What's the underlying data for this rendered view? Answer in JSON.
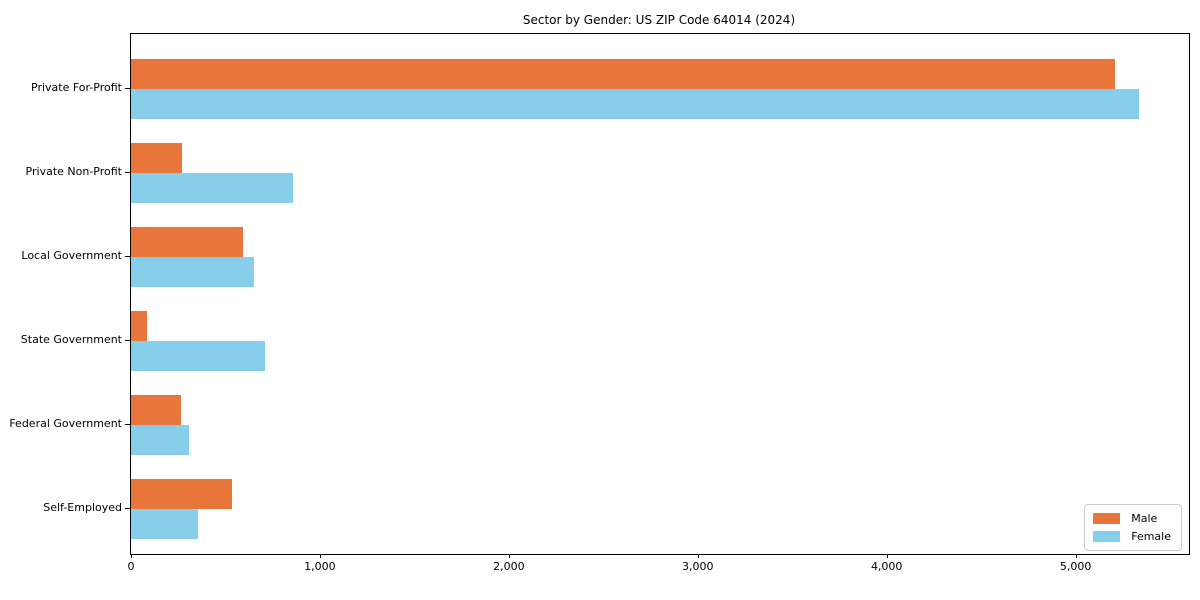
{
  "title": "Sector by Gender: US ZIP Code 64014 (2024)",
  "chart_data": {
    "type": "bar",
    "orientation": "horizontal",
    "title": "Sector by Gender: US ZIP Code 64014 (2024)",
    "categories": [
      "Private For-Profit",
      "Private Non-Profit",
      "Local Government",
      "State Government",
      "Federal Government",
      "Self-Employed"
    ],
    "series": [
      {
        "name": "Male",
        "color": "#e8763b",
        "values": [
          5210,
          270,
          595,
          85,
          265,
          535
        ]
      },
      {
        "name": "Female",
        "color": "#87ceeb",
        "values": [
          5335,
          855,
          650,
          710,
          305,
          355
        ]
      }
    ],
    "xlabel": "",
    "ylabel": "",
    "xlim": [
      0,
      5600
    ],
    "xticks": [
      0,
      1000,
      2000,
      3000,
      4000,
      5000
    ],
    "xtick_labels": [
      "0",
      "1,000",
      "2,000",
      "3,000",
      "4,000",
      "5,000"
    ],
    "grid": false,
    "legend_position": "lower right",
    "colors": {
      "spine": "#000000",
      "legend_border": "#cccccc",
      "background": "#ffffff"
    }
  }
}
